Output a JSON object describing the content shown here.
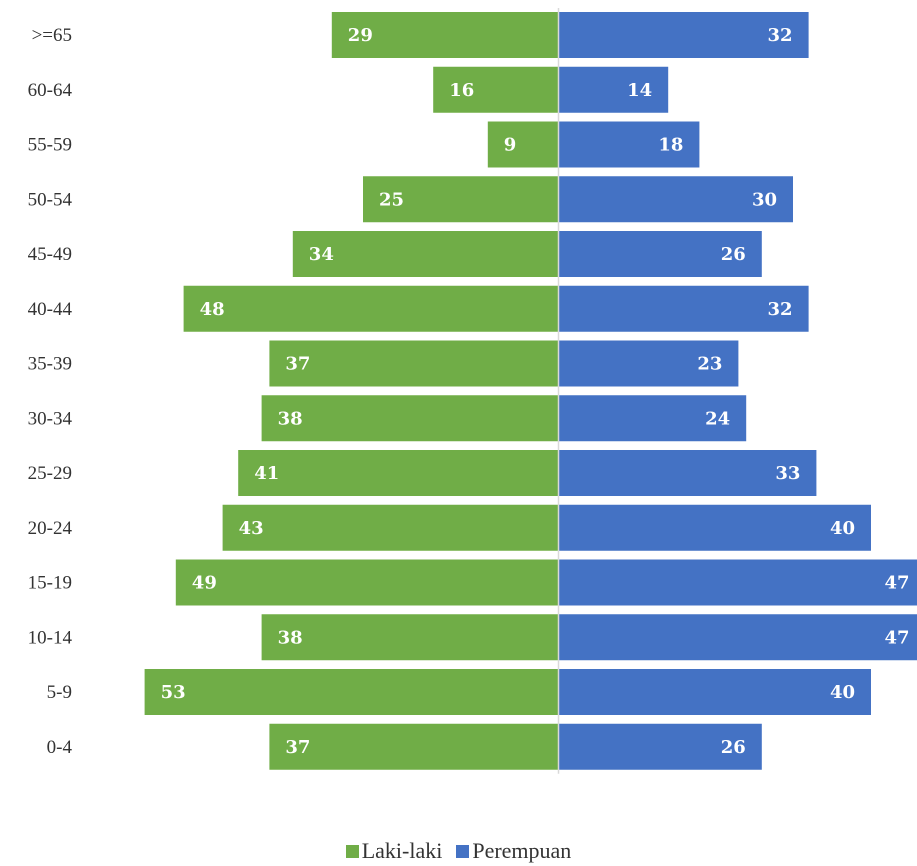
{
  "chart_data": {
    "type": "bar",
    "orientation": "horizontal-diverging",
    "categories": [
      ">=65",
      "60-64",
      "55-59",
      "50-54",
      "45-49",
      "40-44",
      "35-39",
      "30-34",
      "25-29",
      "20-24",
      "15-19",
      "10-14",
      "5-9",
      "0-4"
    ],
    "series": [
      {
        "name": "Laki-laki",
        "color": "#70AD47",
        "direction": "left",
        "values": [
          29,
          16,
          9,
          25,
          34,
          48,
          37,
          38,
          41,
          43,
          49,
          38,
          53,
          37
        ]
      },
      {
        "name": "Perempuan",
        "color": "#4472C4",
        "direction": "right",
        "values": [
          32,
          14,
          18,
          30,
          26,
          32,
          23,
          24,
          33,
          40,
          47,
          47,
          40,
          26
        ]
      }
    ],
    "title": "",
    "xlabel": "",
    "ylabel": "",
    "data_labels": true,
    "grid": false,
    "legend_position": "bottom"
  }
}
